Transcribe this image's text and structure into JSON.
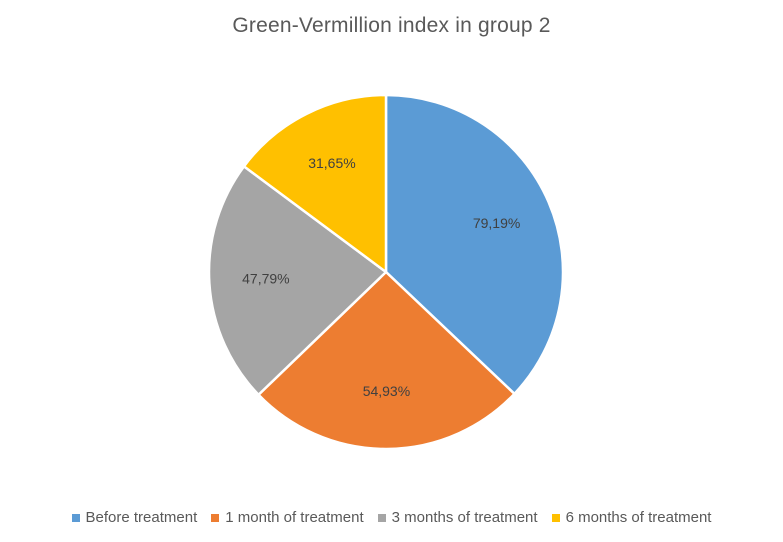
{
  "chart_data": {
    "type": "pie",
    "title": "Green-Vermillion index in group 2",
    "categories": [
      "Before treatment",
      "1 month of treatment",
      "3 months of treatment",
      "6 months of treatment"
    ],
    "values": [
      79.19,
      54.93,
      47.79,
      31.65
    ],
    "data_labels": [
      "79,19%",
      "54,93%",
      "47,79%",
      "31,65%"
    ],
    "colors": [
      "#5B9BD5",
      "#ED7D31",
      "#A5A5A5",
      "#FFC000"
    ],
    "legend_position": "bottom",
    "start_angle": "12 o'clock",
    "direction": "clockwise"
  }
}
